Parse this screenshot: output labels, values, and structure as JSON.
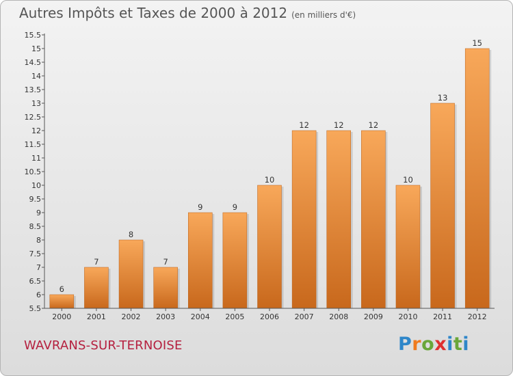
{
  "header": {
    "title": "Autres Impôts et Taxes de 2000 à 2012",
    "unit": "(en milliers d'€)"
  },
  "commune": "WAVRANS-SUR-TERNOISE",
  "logo": {
    "letters": [
      "P",
      "r",
      "o",
      "x",
      "i",
      "t",
      "i"
    ],
    "colors": [
      "#2e86c9",
      "#f07b1f",
      "#6aa639",
      "#e0302f",
      "#2e86c9",
      "#6aa639",
      "#2e86c9"
    ]
  },
  "colors": {
    "bar_top": "#f8a85a",
    "bar_bottom": "#c8681c",
    "axis": "#555555"
  },
  "chart_data": {
    "type": "bar",
    "title": "Autres Impôts et Taxes de 2000 à 2012",
    "subtitle": "(en milliers d'€)",
    "categories": [
      "2000",
      "2001",
      "2002",
      "2003",
      "2004",
      "2005",
      "2006",
      "2007",
      "2008",
      "2009",
      "2010",
      "2011",
      "2012"
    ],
    "values": [
      6,
      7,
      8,
      7,
      9,
      9,
      10,
      12,
      12,
      12,
      10,
      13,
      15
    ],
    "value_labels": [
      "6",
      "7",
      "8",
      "7",
      "9",
      "9",
      "10",
      "12",
      "12",
      "12",
      "10",
      "13",
      "15"
    ],
    "ylim": [
      5.5,
      15.5
    ],
    "yticks": [
      5.5,
      6,
      6.5,
      7,
      7.5,
      8,
      8.5,
      9,
      9.5,
      10,
      10.5,
      11,
      11.5,
      12,
      12.5,
      13,
      13.5,
      14,
      14.5,
      15,
      15.5
    ],
    "ytick_labels": [
      "5.5",
      "6",
      "6.5",
      "7",
      "7.5",
      "8",
      "8.5",
      "9",
      "9.5",
      "10",
      "10.5",
      "11",
      "11.5",
      "12",
      "12.5",
      "13",
      "13.5",
      "14",
      "14.5",
      "15",
      "15.5"
    ],
    "grid": false,
    "legend": "none"
  }
}
